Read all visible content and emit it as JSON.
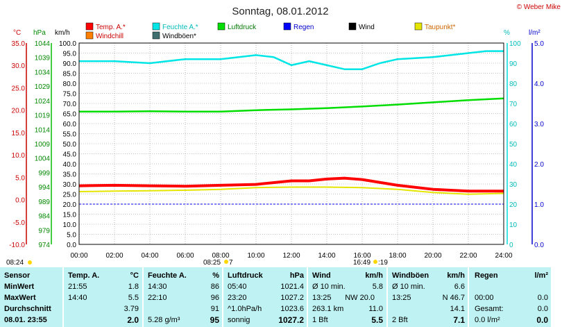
{
  "title": "Sonntag, 08.01.2012",
  "copyright": "© Weber Mike",
  "colors": {
    "temp": "#ff0000",
    "humidity": "#00e5e5",
    "pressure": "#00dd00",
    "rain": "#0000ff",
    "wind": "#000000",
    "dewpoint": "#e5e500",
    "windchill": "#ff7f00",
    "gust": "#3f6f6f",
    "panel": "#bff2f2"
  },
  "legend": {
    "temp": "Temp. A.*",
    "humidity": "Feuchte A.*",
    "pressure": "Luftdruck",
    "rain": "Regen",
    "wind": "Wind",
    "dewpoint": "Taupunkt*",
    "windchill": "Windchill",
    "gust": "Windböen*"
  },
  "axis_units": {
    "celsius": "°C",
    "hpa": "hPa",
    "kmh": "km/h",
    "percent": "%",
    "rain": "l/m²"
  },
  "markers": {
    "sunrise": "08:24",
    "sunrise_sun": "08:25",
    "sunrise_suffix": "7",
    "sunset": "16:49",
    "sunset_suffix": ":19"
  },
  "chart_data": {
    "type": "line",
    "x_ticks": [
      "00:00",
      "02:00",
      "04:00",
      "06:00",
      "08:00",
      "10:00",
      "12:00",
      "14:00",
      "16:00",
      "18:00",
      "20:00",
      "22:00",
      "24:00"
    ],
    "x_range_hours": [
      0,
      24
    ],
    "axes": {
      "temperature_c": {
        "range": [
          -10,
          35
        ],
        "ticks": [
          "35.0",
          "30.0",
          "25.0",
          "20.0",
          "15.0",
          "10.0",
          "5.0",
          "0.0",
          "-5.0",
          "-10.0"
        ]
      },
      "pressure_hpa": {
        "range": [
          974,
          1046
        ],
        "ticks": [
          "1044",
          "1039",
          "1034",
          "1029",
          "1024",
          "1019",
          "1014",
          "1009",
          "1004",
          "999",
          "994",
          "989",
          "984",
          "979",
          "974"
        ]
      },
      "wind_kmh": {
        "range": [
          0,
          100
        ],
        "ticks": [
          "100.0",
          "95.0",
          "90.0",
          "85.0",
          "80.0",
          "75.0",
          "70.0",
          "65.0",
          "60.0",
          "55.0",
          "50.0",
          "45.0",
          "40.0",
          "35.0",
          "30.0",
          "25.0",
          "20.0",
          "15.0",
          "10.0",
          "5.0",
          "0.0"
        ]
      },
      "humidity_pct": {
        "range": [
          0,
          100
        ],
        "ticks": [
          "100",
          "90",
          "80",
          "70",
          "60",
          "50",
          "40",
          "30",
          "20",
          "10",
          "0"
        ]
      },
      "rain_l": {
        "range": [
          0,
          5
        ],
        "ticks": [
          "5.0",
          "4.0",
          "3.0",
          "2.0",
          "1.0",
          "0.0"
        ]
      }
    },
    "series": [
      {
        "name": "Feuchte A.*",
        "axis": "humidity_pct",
        "x": [
          0,
          2,
          4,
          6,
          8,
          10,
          11,
          12,
          13,
          14,
          15,
          16,
          17,
          18,
          20,
          22,
          23,
          24
        ],
        "y": [
          91,
          91,
          90,
          92,
          92,
          94,
          93,
          89,
          91,
          89,
          87,
          87,
          90,
          92,
          93,
          95,
          96,
          96
        ]
      },
      {
        "name": "Luftdruck",
        "axis": "pressure_hpa",
        "x": [
          0,
          2,
          4,
          6,
          8,
          10,
          12,
          14,
          16,
          18,
          20,
          22,
          24
        ],
        "y": [
          1021.5,
          1021.5,
          1021.6,
          1021.5,
          1021.5,
          1022.0,
          1022.3,
          1022.7,
          1023.3,
          1024.0,
          1024.8,
          1025.6,
          1026.2
        ]
      },
      {
        "name": "Temp. A.*",
        "axis": "temperature_c",
        "x": [
          0,
          2,
          4,
          6,
          8,
          10,
          12,
          13,
          14,
          15,
          16,
          18,
          20,
          22,
          24
        ],
        "y": [
          3.1,
          3.2,
          3.1,
          3.0,
          3.2,
          3.4,
          4.2,
          4.2,
          4.6,
          4.8,
          4.5,
          3.2,
          2.3,
          1.9,
          1.9
        ]
      },
      {
        "name": "Taupunkt*",
        "axis": "temperature_c",
        "x": [
          0,
          2,
          4,
          6,
          8,
          10,
          12,
          14,
          16,
          18,
          20,
          22,
          24
        ],
        "y": [
          1.8,
          1.9,
          2.0,
          2.1,
          2.3,
          2.7,
          2.8,
          2.8,
          2.7,
          2.3,
          1.6,
          1.2,
          1.4
        ]
      },
      {
        "name": "Regen",
        "axis": "rain_l",
        "x": [
          0,
          24
        ],
        "y": [
          1.0,
          1.0
        ]
      }
    ]
  },
  "table": {
    "headers": [
      {
        "label": "Sensor",
        "unit": ""
      },
      {
        "label": "Temp. A.",
        "unit": "°C"
      },
      {
        "label": "Feuchte A.",
        "unit": "%"
      },
      {
        "label": "Luftdruck",
        "unit": "hPa"
      },
      {
        "label": "Wind",
        "unit": "km/h"
      },
      {
        "label": "Windböen",
        "unit": "km/h"
      },
      {
        "label": "Regen",
        "unit": "l/m²"
      }
    ],
    "rows": [
      {
        "label": "MinWert",
        "temp": [
          "21:55",
          "1.8"
        ],
        "hum": [
          "14:30",
          "86"
        ],
        "press": [
          "05:40",
          "1021.4"
        ],
        "wind": [
          "Ø 10 min.",
          "",
          "5.8"
        ],
        "gust": [
          "Ø 10 min.",
          "6.6"
        ],
        "rain": [
          "",
          "",
          ""
        ]
      },
      {
        "label": "MaxWert",
        "temp": [
          "14:40",
          "5.5"
        ],
        "hum": [
          "22:10",
          "96"
        ],
        "press": [
          "23:20",
          "1027.2"
        ],
        "wind": [
          "13:25",
          "NW 20.0",
          ""
        ],
        "gust": [
          "13:25",
          "N 46.7"
        ],
        "rain": [
          "00:00",
          "",
          "0.0"
        ]
      },
      {
        "label": "Durchschnitt",
        "temp": [
          "",
          "3.79"
        ],
        "hum": [
          "",
          "91"
        ],
        "press": [
          "^1.0hPa/h",
          "1023.6"
        ],
        "wind": [
          "263.1 km",
          "",
          "11.0"
        ],
        "gust": [
          "",
          "14.1"
        ],
        "rain": [
          "Gesamt:",
          "",
          "0.0"
        ]
      },
      {
        "label": "08.01. 23:55",
        "temp": [
          "",
          "2.0"
        ],
        "hum": [
          "5.28 g/m³",
          "95"
        ],
        "press": [
          "sonnig",
          "1027.2"
        ],
        "wind": [
          "1 Bft",
          "",
          "5.5"
        ],
        "gust": [
          "2 Bft",
          "7.1"
        ],
        "rain": [
          "0.0 l/m²",
          "",
          "0.0"
        ]
      }
    ]
  }
}
